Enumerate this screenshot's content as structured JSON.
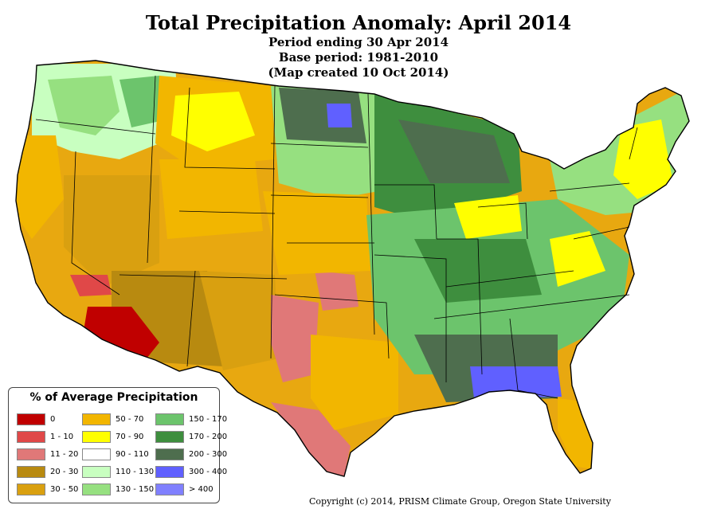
{
  "title": "Total Precipitation Anomaly: April 2014",
  "subtitle_period": "Period ending 30 Apr 2014",
  "subtitle_base": "Base period: 1981-2010",
  "subtitle_created": "(Map created 10 Oct 2014)",
  "legend": {
    "title": "% of Average Precipitation",
    "items": [
      {
        "label": "0",
        "color": "#c00000"
      },
      {
        "label": "1 - 10",
        "color": "#e04848"
      },
      {
        "label": "11 - 20",
        "color": "#e07878"
      },
      {
        "label": "20 - 30",
        "color": "#b88a10"
      },
      {
        "label": "30 - 50",
        "color": "#d9a010"
      },
      {
        "label": "50 - 70",
        "color": "#f2b600"
      },
      {
        "label": "70 - 90",
        "color": "#ffff00"
      },
      {
        "label": "90 - 110",
        "color": "#ffffff"
      },
      {
        "label": "110 - 130",
        "color": "#c8ffc0"
      },
      {
        "label": "130 - 150",
        "color": "#96e080"
      },
      {
        "label": "150 - 170",
        "color": "#6cc46c"
      },
      {
        "label": "170 - 200",
        "color": "#3e8e3e"
      },
      {
        "label": "200 - 300",
        "color": "#4e6e4e"
      },
      {
        "label": "300 - 400",
        "color": "#6060ff"
      },
      {
        "label": "> 400",
        "color": "#8080ff"
      }
    ]
  },
  "copyright": "Copyright (c) 2014, PRISM Climate Group, Oregon State University"
}
